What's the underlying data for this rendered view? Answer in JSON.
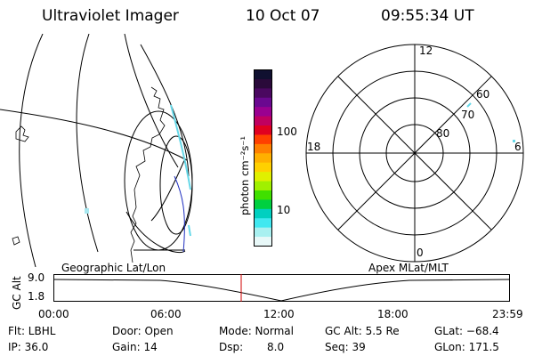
{
  "header": {
    "instrument": "Ultraviolet Imager",
    "date": "10 Oct 07",
    "time": "09:55:34 UT"
  },
  "geographic_panel": {
    "caption": "Geographic Lat/Lon"
  },
  "colorbar": {
    "unit_label": "photon cm⁻²s⁻¹",
    "ticks": [
      "100",
      "10"
    ],
    "colors": [
      "#101030",
      "#2a0a3a",
      "#4a0860",
      "#6a0890",
      "#9a0090",
      "#c00060",
      "#e00020",
      "#ff4000",
      "#ff8000",
      "#ffb000",
      "#ffd000",
      "#e0f000",
      "#a0f000",
      "#40e000",
      "#00d040",
      "#00d0c0",
      "#40e8f0",
      "#a8f0f0",
      "#e8f8f8"
    ]
  },
  "polar_panel": {
    "caption": "Apex MLat/MLT",
    "mlt_labels": {
      "top": "12",
      "left": "18",
      "right": "6",
      "bottom": "0"
    },
    "lat_labels": [
      "60",
      "70",
      "80"
    ]
  },
  "timeline": {
    "axis_label": "GC Alt",
    "y_ticks": [
      "9.0",
      "1.8"
    ],
    "x_ticks": [
      "00:00",
      "06:00",
      "12:00",
      "18:00",
      "23:59"
    ],
    "marker_color": "#d00000"
  },
  "status": {
    "row1": {
      "flt": "Flt: LBHL",
      "door": "Door: Open",
      "mode": "Mode: Normal",
      "gc_alt": "GC Alt: 5.5 Re",
      "glat": "GLat: −68.4"
    },
    "row2": {
      "ip": "IP: 36.0",
      "gain": "Gain: 14",
      "dsp_label": "Dsp:",
      "dsp_value": "8.0",
      "seq": "Seq: 39",
      "glon": "GLon: 171.5"
    }
  }
}
